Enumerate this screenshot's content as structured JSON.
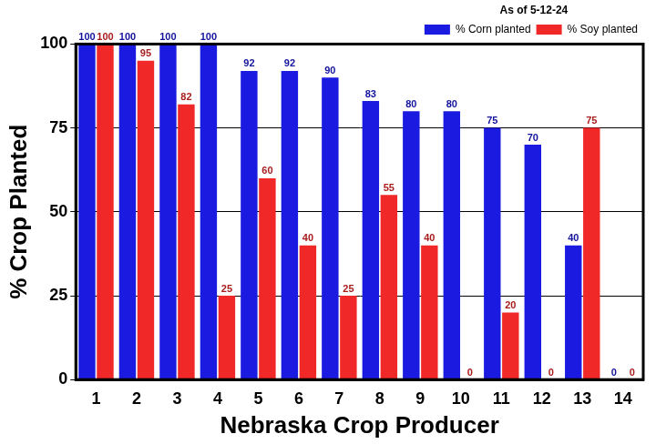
{
  "chart_data": {
    "type": "bar",
    "x_label": "Nebraska Crop Producer",
    "y_label": "% Crop Planted",
    "annotation": "As of 5-12-24",
    "categories": [
      "1",
      "2",
      "3",
      "4",
      "5",
      "6",
      "7",
      "8",
      "9",
      "10",
      "11",
      "12",
      "13",
      "14"
    ],
    "series": [
      {
        "name": "% Corn planted",
        "color": "#1a1ae0",
        "values": [
          100,
          100,
          100,
          100,
          92,
          92,
          90,
          83,
          80,
          80,
          75,
          70,
          40,
          0
        ]
      },
      {
        "name": "% Soy planted",
        "color": "#f02828",
        "values": [
          100,
          95,
          82,
          25,
          60,
          40,
          25,
          55,
          40,
          0,
          20,
          0,
          75,
          0
        ]
      }
    ],
    "ylim": [
      0,
      100
    ],
    "yticks": [
      0,
      25,
      50,
      75,
      100
    ],
    "grid": true,
    "legend": "upper right",
    "data_labels": true
  }
}
